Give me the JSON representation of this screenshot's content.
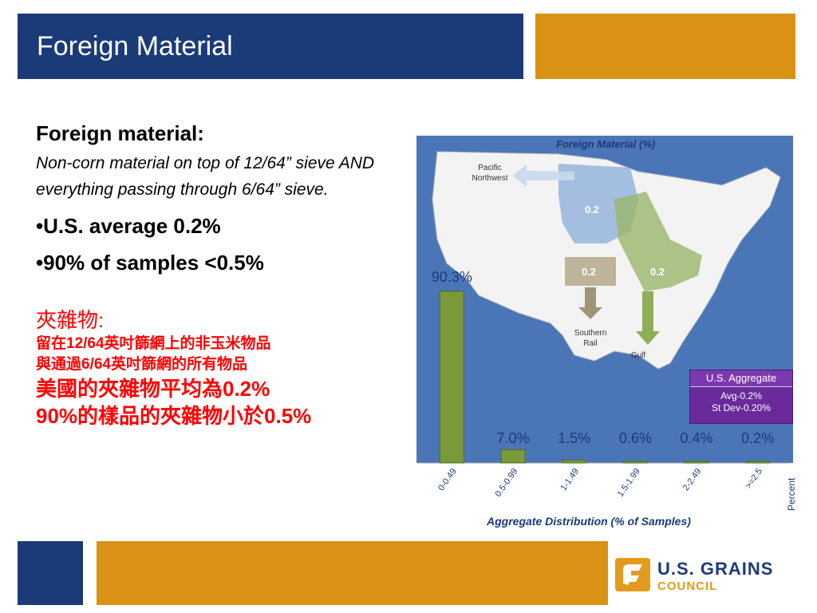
{
  "header": {
    "title": "Foreign Material"
  },
  "left": {
    "heading": "Foreign material:",
    "definition": "Non-corn material on top of 12/64” sieve AND everything passing through 6/64” sieve.",
    "bullets": [
      "•U.S. average 0.2%",
      "•90% of samples <0.5%"
    ],
    "zh_heading": "夾雜物:",
    "zh_def1": "留在12/64英吋篩網上的非玉米物品",
    "zh_def2": "與通過6/64英吋篩網的所有物品",
    "zh_avg": "美國的夾雜物平均為0.2%",
    "zh_samples": "90%的樣品的夾雜物小於0.5%"
  },
  "map": {
    "title": "Foreign Material (%)",
    "labels": {
      "pnw": [
        "Pacific",
        "Northwest"
      ],
      "southern_rail": [
        "Southern",
        "Rail"
      ],
      "gulf": "Gulf"
    },
    "region_values": [
      "0.2",
      "0.2",
      "0.2"
    ],
    "colors": {
      "ocean": "#4a76b8",
      "land": "#f3f3f3",
      "blue_region": "#8eb0d8",
      "green_region": "#9bb56a",
      "tan_region": "#b5a88a"
    }
  },
  "aggregate": {
    "title": "U.S. Aggregate",
    "avg": "Avg-0.2%",
    "sd": "St Dev-0.20%"
  },
  "chart_data": {
    "type": "bar",
    "categories": [
      "0-0.49",
      "0.5-0.99",
      "1-1.49",
      "1.5-1.99",
      "2-2.49",
      ">=2.5"
    ],
    "values": [
      90.3,
      7.0,
      1.5,
      0.6,
      0.4,
      0.2
    ],
    "value_labels": [
      "90.3%",
      "7.0%",
      "1.5%",
      "0.6%",
      "0.4%",
      "0.2%"
    ],
    "xlabel": "Aggregate Distribution (% of Samples)",
    "ylabel": "Percent",
    "ylim": [
      0,
      100
    ],
    "bar_color": "#7a9a3a"
  },
  "footer": {
    "org_line1": "U.S. GRAINS",
    "org_line2": "COUNCIL"
  }
}
